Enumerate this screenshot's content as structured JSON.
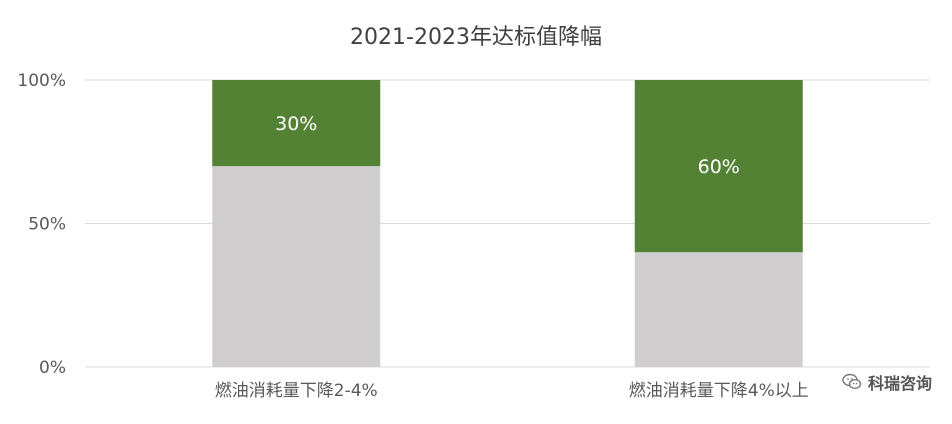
{
  "chart_data": {
    "type": "bar",
    "stacked": true,
    "title": "2021-2023年达标值降幅",
    "categories": [
      "燃油消耗量下降2-4%",
      "燃油消耗量下降4%以上"
    ],
    "series": [
      {
        "values": [
          70,
          40
        ],
        "color": "#d0cece"
      },
      {
        "values": [
          30,
          60
        ],
        "color": "#548235"
      }
    ],
    "data_labels": [
      "30%",
      "60%"
    ],
    "ylim": [
      0,
      100
    ],
    "yticks": [
      {
        "value": 0,
        "label": "0%"
      },
      {
        "value": 50,
        "label": "50%"
      },
      {
        "value": 100,
        "label": "100%"
      }
    ],
    "grid": true,
    "legend": "none"
  },
  "watermark": {
    "text": "科瑞咨询",
    "icon": "wechat-icon"
  },
  "colors": {
    "gridline": "#d9d9d9",
    "axis_text": "#595959",
    "title": "#404040",
    "label_text": "#ffffff"
  }
}
